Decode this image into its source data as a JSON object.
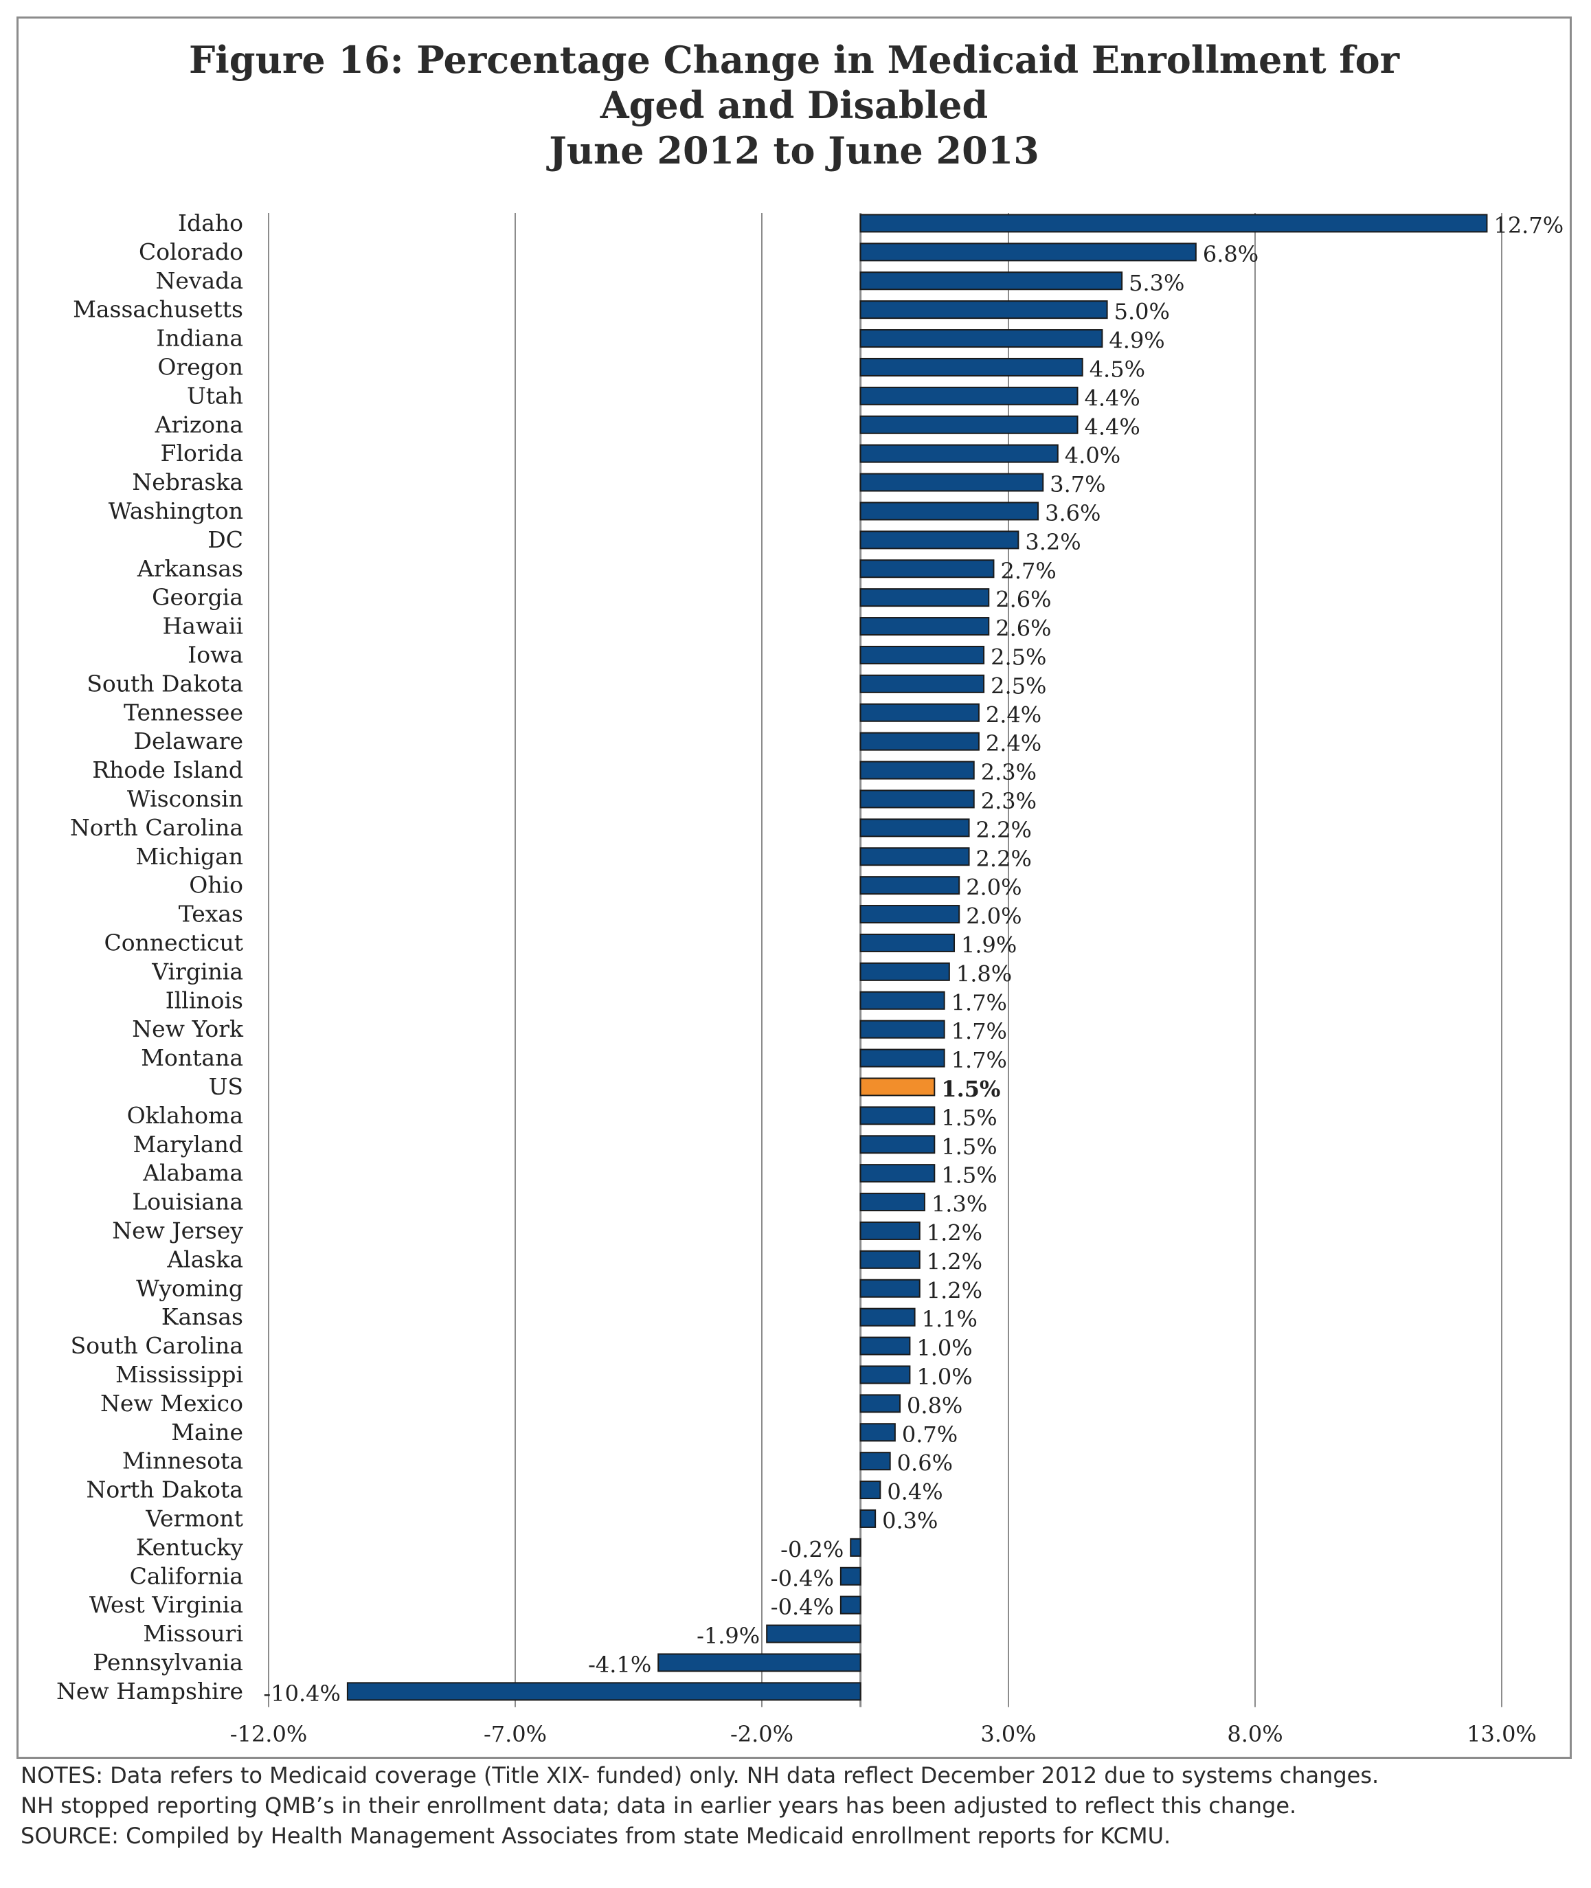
{
  "title_lines": [
    "Figure 16: Percentage Change in Medicaid Enrollment for",
    "Aged and Disabled",
    "June 2012 to June 2013"
  ],
  "notes_lines": [
    "NOTES: Data refers to Medicaid coverage (Title XIX- funded) only. NH data reflect December 2012 due to systems changes.",
    "NH stopped reporting QMB’s in their enrollment data; data in earlier years has been adjusted to reflect this change.",
    "SOURCE: Compiled by Health Management Associates from state Medicaid enrollment reports for KCMU."
  ],
  "colors": {
    "bar": "#0d4a85",
    "bar_edge": "#1a1a1a",
    "highlight": "#f28e2b",
    "grid": "#8c8c8c"
  },
  "chart_data": {
    "type": "bar",
    "orientation": "horizontal",
    "title": "Figure 16: Percentage Change in Medicaid Enrollment for Aged and Disabled June 2012 to June 2013",
    "xlim": [
      -12.0,
      13.0
    ],
    "x_ticks": [
      -12.0,
      -7.0,
      -2.0,
      3.0,
      8.0,
      13.0
    ],
    "x_tick_labels": [
      "-12.0%",
      "-7.0%",
      "-2.0%",
      "3.0%",
      "8.0%",
      "13.0%"
    ],
    "grid": "vertical",
    "highlight_category": "US",
    "categories": [
      "Idaho",
      "Colorado",
      "Nevada",
      "Massachusetts",
      "Indiana",
      "Oregon",
      "Utah",
      "Arizona",
      "Florida",
      "Nebraska",
      "Washington",
      "DC",
      "Arkansas",
      "Georgia",
      "Hawaii",
      "Iowa",
      "South Dakota",
      "Tennessee",
      "Delaware",
      "Rhode Island",
      "Wisconsin",
      "North Carolina",
      "Michigan",
      "Ohio",
      "Texas",
      "Connecticut",
      "Virginia",
      "Illinois",
      "New York",
      "Montana",
      "US",
      "Oklahoma",
      "Maryland",
      "Alabama",
      "Louisiana",
      "New Jersey",
      "Alaska",
      "Wyoming",
      "Kansas",
      "South Carolina",
      "Mississippi",
      "New Mexico",
      "Maine",
      "Minnesota",
      "North Dakota",
      "Vermont",
      "Kentucky",
      "California",
      "West Virginia",
      "Missouri",
      "Pennsylvania",
      "New Hampshire"
    ],
    "values": [
      12.7,
      6.8,
      5.3,
      5.0,
      4.9,
      4.5,
      4.4,
      4.4,
      4.0,
      3.7,
      3.6,
      3.2,
      2.7,
      2.6,
      2.6,
      2.5,
      2.5,
      2.4,
      2.4,
      2.3,
      2.3,
      2.2,
      2.2,
      2.0,
      2.0,
      1.9,
      1.8,
      1.7,
      1.7,
      1.7,
      1.5,
      1.5,
      1.5,
      1.5,
      1.3,
      1.2,
      1.2,
      1.2,
      1.1,
      1.0,
      1.0,
      0.8,
      0.7,
      0.6,
      0.4,
      0.3,
      -0.2,
      -0.4,
      -0.4,
      -1.9,
      -4.1,
      -10.4
    ],
    "labels": [
      "12.7%",
      "6.8%",
      "5.3%",
      "5.0%",
      "4.9%",
      "4.5%",
      "4.4%",
      "4.4%",
      "4.0%",
      "3.7%",
      "3.6%",
      "3.2%",
      "2.7%",
      "2.6%",
      "2.6%",
      "2.5%",
      "2.5%",
      "2.4%",
      "2.4%",
      "2.3%",
      "2.3%",
      "2.2%",
      "2.2%",
      "2.0%",
      "2.0%",
      "1.9%",
      "1.8%",
      "1.7%",
      "1.7%",
      "1.7%",
      "1.5%",
      "1.5%",
      "1.5%",
      "1.5%",
      "1.3%",
      "1.2%",
      "1.2%",
      "1.2%",
      "1.1%",
      "1.0%",
      "1.0%",
      "0.8%",
      "0.7%",
      "0.6%",
      "0.4%",
      "0.3%",
      "-0.2%",
      "-0.4%",
      "-0.4%",
      "-1.9%",
      "-4.1%",
      "-10.4%"
    ]
  }
}
